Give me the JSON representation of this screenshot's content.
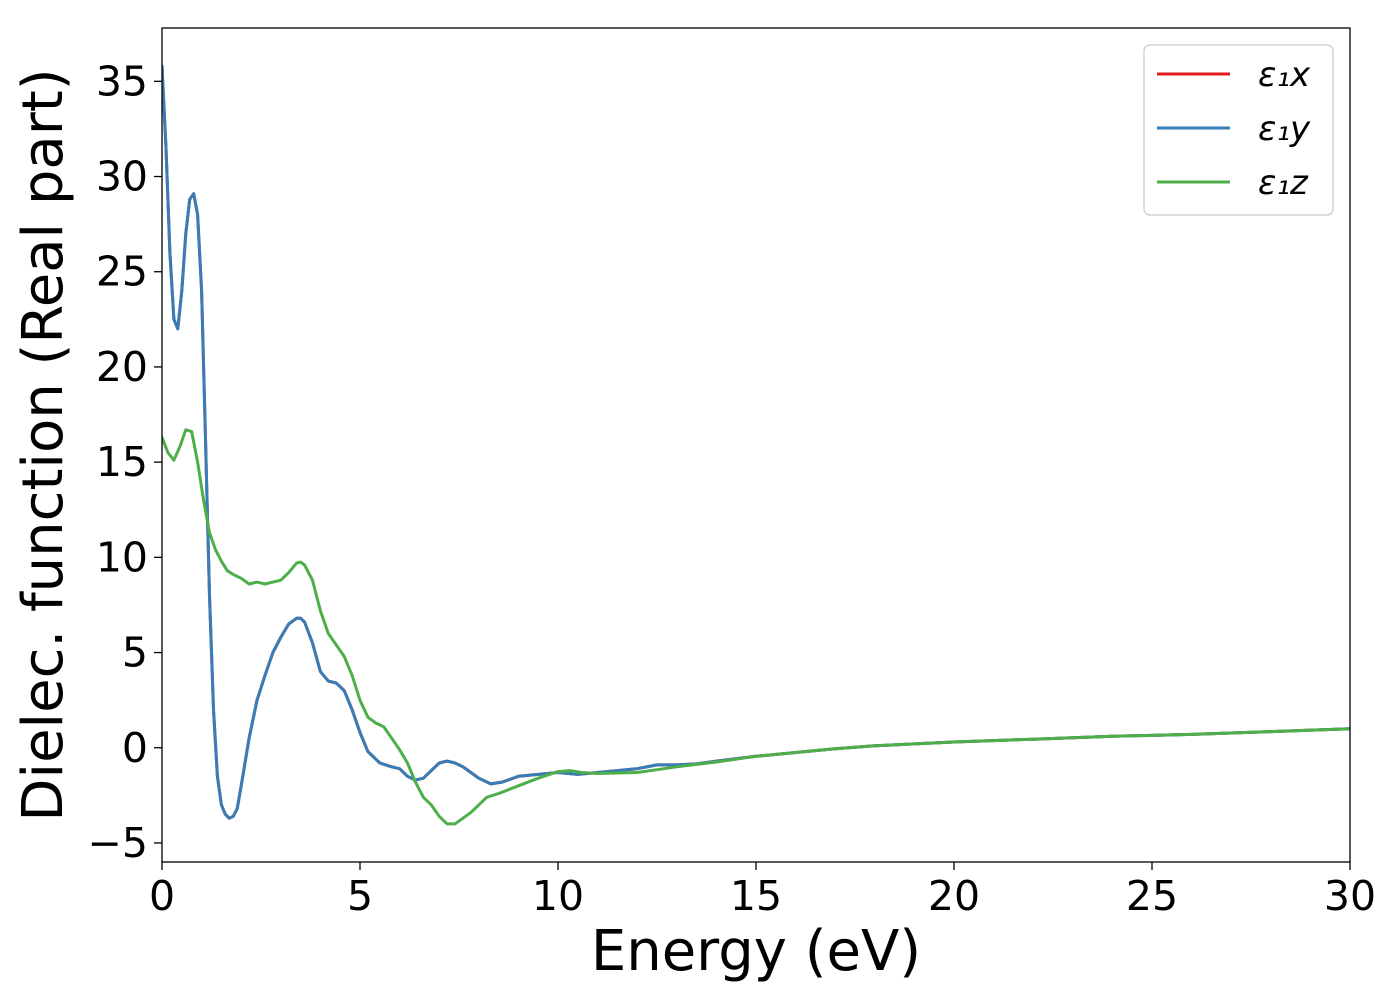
{
  "chart_data": {
    "type": "line",
    "title": "",
    "xlabel": "Energy (eV)",
    "ylabel": "Dielec. function (Real part)",
    "xlim": [
      0,
      30
    ],
    "ylim": [
      -6,
      37.8
    ],
    "xticks": [
      0,
      5,
      10,
      15,
      20,
      25,
      30
    ],
    "yticks": [
      -5,
      0,
      5,
      10,
      15,
      20,
      25,
      30,
      35
    ],
    "ytick_labels": [
      "−5",
      "0",
      "5",
      "10",
      "15",
      "20",
      "25",
      "30",
      "35"
    ],
    "grid": false,
    "legend_position": "top-right",
    "series": [
      {
        "name": "ε₁x",
        "color": "#e41a1c",
        "x": [
          0,
          0.1,
          0.2,
          0.3,
          0.4,
          0.5,
          0.6,
          0.7,
          0.8,
          0.9,
          1.0,
          1.1,
          1.2,
          1.3,
          1.4,
          1.5,
          1.6,
          1.7,
          1.8,
          1.9,
          2.0,
          2.2,
          2.4,
          2.6,
          2.8,
          3.0,
          3.2,
          3.4,
          3.5,
          3.6,
          3.8,
          4.0,
          4.2,
          4.4,
          4.6,
          4.8,
          5.0,
          5.2,
          5.5,
          5.8,
          6.0,
          6.2,
          6.4,
          6.6,
          6.8,
          7.0,
          7.2,
          7.4,
          7.6,
          7.8,
          8.0,
          8.3,
          8.6,
          9.0,
          9.5,
          10.0,
          10.5,
          11.0,
          11.5,
          12.0,
          12.5,
          13.0,
          13.5,
          14.0,
          15.0,
          16.0,
          17.0,
          18.0,
          19.0,
          20.0,
          22.0,
          24.0,
          26.0,
          28.0,
          30.0
        ],
        "values": [
          35.8,
          31.5,
          26.0,
          22.5,
          22.0,
          24.0,
          27.0,
          28.8,
          29.1,
          28.0,
          24.0,
          16.0,
          8.0,
          2.0,
          -1.5,
          -3.0,
          -3.5,
          -3.7,
          -3.6,
          -3.2,
          -2.0,
          0.5,
          2.5,
          3.8,
          5.0,
          5.8,
          6.5,
          6.8,
          6.8,
          6.6,
          5.5,
          4.0,
          3.5,
          3.4,
          3.0,
          2.0,
          0.8,
          -0.2,
          -0.8,
          -1.0,
          -1.1,
          -1.5,
          -1.7,
          -1.6,
          -1.2,
          -0.8,
          -0.7,
          -0.8,
          -1.0,
          -1.3,
          -1.6,
          -1.9,
          -1.8,
          -1.5,
          -1.4,
          -1.3,
          -1.4,
          -1.3,
          -1.2,
          -1.1,
          -0.9,
          -0.9,
          -0.85,
          -0.7,
          -0.45,
          -0.25,
          -0.05,
          0.1,
          0.2,
          0.3,
          0.45,
          0.6,
          0.7,
          0.85,
          1.0
        ]
      },
      {
        "name": "ε₁y",
        "color": "#377eb8",
        "x": [
          0,
          0.1,
          0.2,
          0.3,
          0.4,
          0.5,
          0.6,
          0.7,
          0.8,
          0.9,
          1.0,
          1.1,
          1.2,
          1.3,
          1.4,
          1.5,
          1.6,
          1.7,
          1.8,
          1.9,
          2.0,
          2.2,
          2.4,
          2.6,
          2.8,
          3.0,
          3.2,
          3.4,
          3.5,
          3.6,
          3.8,
          4.0,
          4.2,
          4.4,
          4.6,
          4.8,
          5.0,
          5.2,
          5.5,
          5.8,
          6.0,
          6.2,
          6.4,
          6.6,
          6.8,
          7.0,
          7.2,
          7.4,
          7.6,
          7.8,
          8.0,
          8.3,
          8.6,
          9.0,
          9.5,
          10.0,
          10.5,
          11.0,
          11.5,
          12.0,
          12.5,
          13.0,
          13.5,
          14.0,
          15.0,
          16.0,
          17.0,
          18.0,
          19.0,
          20.0,
          22.0,
          24.0,
          26.0,
          28.0,
          30.0
        ],
        "values": [
          35.8,
          31.5,
          26.0,
          22.5,
          22.0,
          24.0,
          27.0,
          28.8,
          29.1,
          28.0,
          24.0,
          16.0,
          8.0,
          2.0,
          -1.5,
          -3.0,
          -3.5,
          -3.7,
          -3.6,
          -3.2,
          -2.0,
          0.5,
          2.5,
          3.8,
          5.0,
          5.8,
          6.5,
          6.8,
          6.8,
          6.6,
          5.5,
          4.0,
          3.5,
          3.4,
          3.0,
          2.0,
          0.8,
          -0.2,
          -0.8,
          -1.0,
          -1.1,
          -1.5,
          -1.7,
          -1.6,
          -1.2,
          -0.8,
          -0.7,
          -0.8,
          -1.0,
          -1.3,
          -1.6,
          -1.9,
          -1.8,
          -1.5,
          -1.4,
          -1.3,
          -1.4,
          -1.3,
          -1.2,
          -1.1,
          -0.9,
          -0.9,
          -0.85,
          -0.7,
          -0.45,
          -0.25,
          -0.05,
          0.1,
          0.2,
          0.3,
          0.45,
          0.6,
          0.7,
          0.85,
          1.0
        ]
      },
      {
        "name": "ε₁z",
        "color": "#4daf4a",
        "x": [
          0,
          0.15,
          0.3,
          0.45,
          0.6,
          0.75,
          0.9,
          1.05,
          1.2,
          1.35,
          1.5,
          1.65,
          1.8,
          2.0,
          2.2,
          2.4,
          2.6,
          2.8,
          3.0,
          3.2,
          3.4,
          3.5,
          3.6,
          3.8,
          4.0,
          4.2,
          4.4,
          4.6,
          4.8,
          5.0,
          5.2,
          5.4,
          5.6,
          5.8,
          6.0,
          6.2,
          6.4,
          6.6,
          6.8,
          7.0,
          7.2,
          7.4,
          7.6,
          7.8,
          8.0,
          8.2,
          8.5,
          9.0,
          9.5,
          10.0,
          10.3,
          10.6,
          11.0,
          12.0,
          12.5,
          13.0,
          14.0,
          15.0,
          16.0,
          17.0,
          18.0,
          20.0,
          22.0,
          24.0,
          26.0,
          28.0,
          30.0
        ],
        "values": [
          16.3,
          15.5,
          15.1,
          15.8,
          16.7,
          16.6,
          15.0,
          13.0,
          11.3,
          10.4,
          9.8,
          9.3,
          9.1,
          8.9,
          8.6,
          8.7,
          8.6,
          8.7,
          8.8,
          9.2,
          9.7,
          9.75,
          9.6,
          8.8,
          7.2,
          6.0,
          5.4,
          4.8,
          3.8,
          2.5,
          1.6,
          1.3,
          1.1,
          0.5,
          -0.1,
          -0.8,
          -1.8,
          -2.6,
          -3.0,
          -3.6,
          -4.0,
          -4.0,
          -3.7,
          -3.4,
          -3.0,
          -2.6,
          -2.4,
          -2.0,
          -1.6,
          -1.25,
          -1.2,
          -1.3,
          -1.35,
          -1.3,
          -1.15,
          -1.0,
          -0.75,
          -0.45,
          -0.25,
          -0.05,
          0.1,
          0.3,
          0.45,
          0.6,
          0.7,
          0.85,
          1.0
        ]
      }
    ]
  }
}
